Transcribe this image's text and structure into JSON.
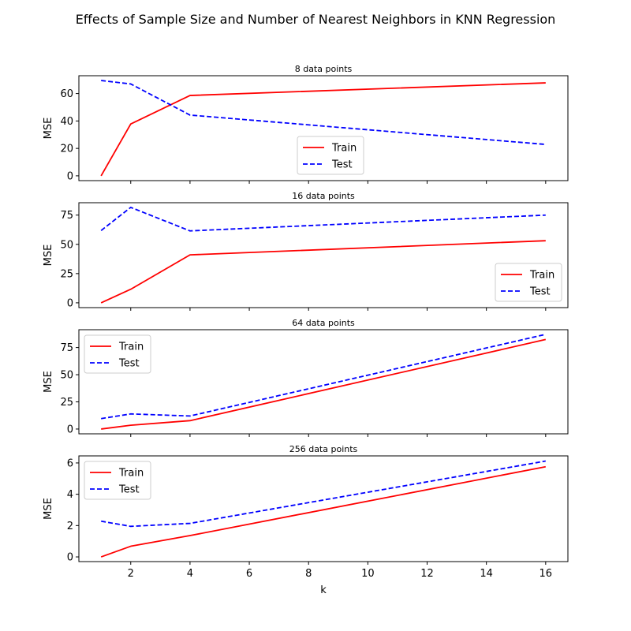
{
  "figure": {
    "suptitle": "Effects of Sample Size and Number of Nearest Neighbors in KNN Regression",
    "xlabel": "k"
  },
  "colors": {
    "train": "#ff0000",
    "test": "#0000ff"
  },
  "chart_data": [
    {
      "type": "line",
      "title": "8 data points",
      "xlabel": "",
      "ylabel": "MSE",
      "x": [
        1,
        2,
        4,
        16
      ],
      "xlim": [
        0.25,
        16.75
      ],
      "ylim": [
        -3.5,
        73
      ],
      "yticks": [
        0,
        20,
        40,
        60
      ],
      "legend_position": "lower-center",
      "grid": false,
      "series": [
        {
          "name": "Train",
          "style": "solid",
          "values": [
            0,
            37.8,
            58.6,
            67.8
          ]
        },
        {
          "name": "Test",
          "style": "dashed",
          "values": [
            69.5,
            67.0,
            44.3,
            22.9
          ]
        }
      ]
    },
    {
      "type": "line",
      "title": "16 data points",
      "xlabel": "",
      "ylabel": "MSE",
      "x": [
        1,
        2,
        4,
        16
      ],
      "xlim": [
        0.25,
        16.75
      ],
      "ylim": [
        -4.1,
        85.6
      ],
      "yticks": [
        0,
        25,
        50,
        75
      ],
      "legend_position": "lower-right",
      "grid": false,
      "series": [
        {
          "name": "Train",
          "style": "solid",
          "values": [
            0,
            11.6,
            41.0,
            53.1
          ]
        },
        {
          "name": "Test",
          "style": "dashed",
          "values": [
            61.8,
            81.6,
            61.5,
            75.0
          ]
        }
      ]
    },
    {
      "type": "line",
      "title": "64 data points",
      "xlabel": "",
      "ylabel": "MSE",
      "x": [
        1,
        2,
        4,
        16
      ],
      "xlim": [
        0.25,
        16.75
      ],
      "ylim": [
        -4.4,
        91.4
      ],
      "yticks": [
        0,
        25,
        50,
        75
      ],
      "legend_position": "upper-left",
      "grid": false,
      "series": [
        {
          "name": "Train",
          "style": "solid",
          "values": [
            0,
            3.5,
            7.7,
            82.4
          ]
        },
        {
          "name": "Test",
          "style": "dashed",
          "values": [
            9.6,
            13.9,
            12.0,
            87.1
          ]
        }
      ]
    },
    {
      "type": "line",
      "title": "256 data points",
      "xlabel": "k",
      "ylabel": "MSE",
      "x": [
        1,
        2,
        4,
        16
      ],
      "xlim": [
        0.25,
        16.75
      ],
      "xticks": [
        2,
        4,
        6,
        8,
        10,
        12,
        14,
        16
      ],
      "ylim": [
        -0.3,
        6.45
      ],
      "yticks": [
        0,
        2,
        4,
        6
      ],
      "legend_position": "upper-left",
      "grid": false,
      "series": [
        {
          "name": "Train",
          "style": "solid",
          "values": [
            0,
            0.68,
            1.36,
            5.76
          ]
        },
        {
          "name": "Test",
          "style": "dashed",
          "values": [
            2.28,
            1.95,
            2.14,
            6.12
          ]
        }
      ]
    }
  ]
}
